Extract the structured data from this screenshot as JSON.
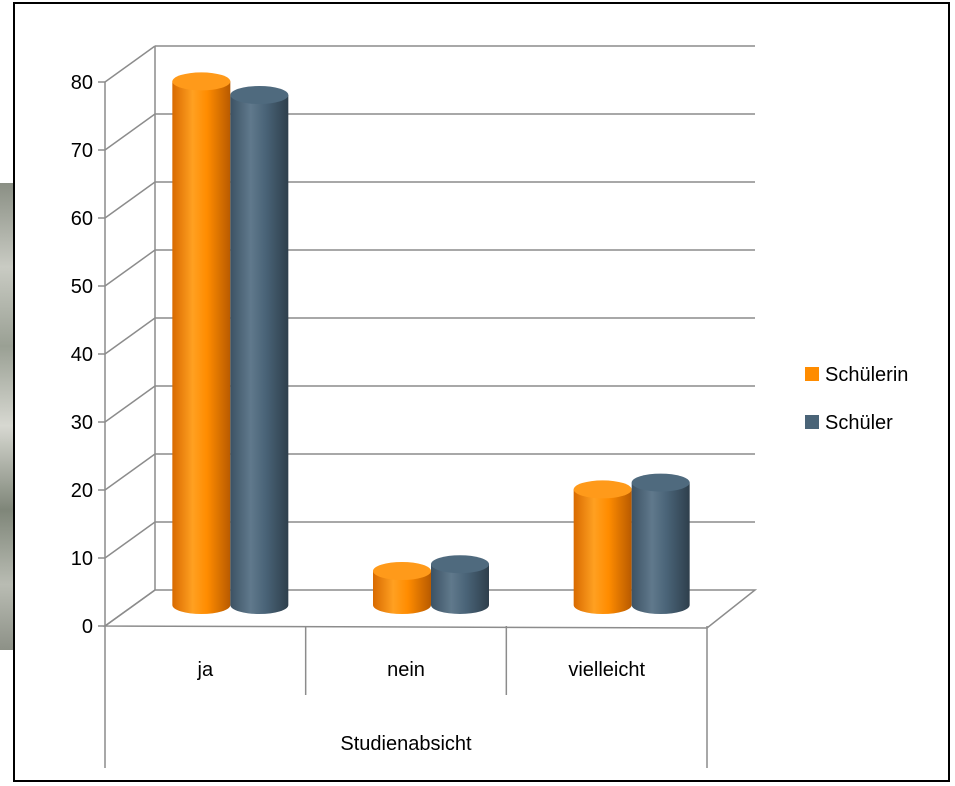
{
  "chart_data": {
    "type": "bar",
    "title": "",
    "xlabel": "Studienabsicht",
    "ylabel": "",
    "categories": [
      "ja",
      "nein",
      "vielleicht"
    ],
    "series": [
      {
        "name": "Schülerin",
        "values": [
          77,
          5,
          17
        ],
        "color": "#ff8c00"
      },
      {
        "name": "Schüler",
        "values": [
          75,
          6,
          18
        ],
        "color": "#4a6478"
      }
    ],
    "ylim": [
      0,
      80
    ],
    "yticks": [
      0,
      10,
      20,
      30,
      40,
      50,
      60,
      70,
      80
    ],
    "grid": true,
    "legend_position": "right",
    "style": "3d-cylinder"
  }
}
